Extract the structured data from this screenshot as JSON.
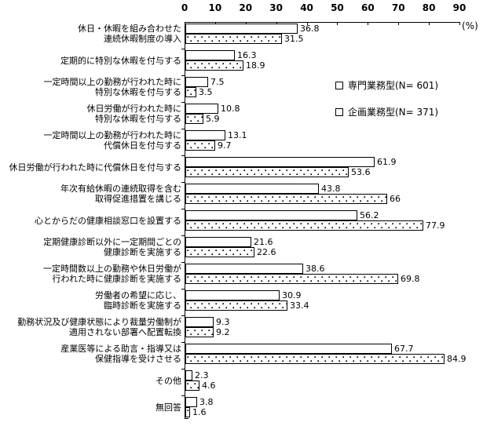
{
  "chart_data": {
    "type": "bar",
    "orientation": "horizontal",
    "unit_label": "(%)",
    "x_ticks": [
      0,
      10,
      20,
      30,
      40,
      50,
      60,
      70,
      80,
      90
    ],
    "xlim": [
      0,
      90
    ],
    "grid": false,
    "legend_position": "right-top",
    "legend": [
      {
        "name": "専門業務型(N= 601)",
        "pattern": "white"
      },
      {
        "name": "企画業務型(N= 371)",
        "pattern": "dotted"
      }
    ],
    "categories": [
      [
        "休日・休暇を組み合わせた",
        "連続休暇制度の導入"
      ],
      [
        "定期的に特別な休暇を付与する"
      ],
      [
        "一定時間以上の勤務が行われた時に",
        "特別な休暇を付与する"
      ],
      [
        "休日労働が行われた時に",
        "特別な休暇を付与する"
      ],
      [
        "一定時間以上の勤務が行われた時に",
        "代償休日を付与する"
      ],
      [
        "休日労働が行われた時に代償休日を付与する"
      ],
      [
        "年次有給休暇の連続取得を含む",
        "取得促進措置を講じる"
      ],
      [
        "心とからだの健康相談窓口を設置する"
      ],
      [
        "定期健康診断以外に一定期間ごとの",
        "健康診断を実施する"
      ],
      [
        "一定時間数以上の勤務や休日労働が",
        "行われた時に健康診断を実施する"
      ],
      [
        "労働者の希望に応じ、",
        "臨時診断を実施する"
      ],
      [
        "勤務状況及び健康状態により裁量労働制が",
        "適用されない部署へ配置転換"
      ],
      [
        "産業医等による助言・指導又は",
        "保健指導を受けさせる"
      ],
      [
        "その他"
      ],
      [
        "無回答"
      ]
    ],
    "series": [
      {
        "name": "専門業務型(N= 601)",
        "pattern": "white",
        "values": [
          36.8,
          16.3,
          7.5,
          10.8,
          13.1,
          61.9,
          43.8,
          56.2,
          21.6,
          38.6,
          30.9,
          9.3,
          67.7,
          2.3,
          3.8
        ]
      },
      {
        "name": "企画業務型(N= 371)",
        "pattern": "dotted",
        "values": [
          31.5,
          18.9,
          3.5,
          5.9,
          9.7,
          53.6,
          66,
          77.9,
          22.6,
          69.8,
          33.4,
          9.2,
          84.9,
          4.6,
          1.6
        ]
      }
    ],
    "colors": {
      "line": "#000000",
      "background": "#ffffff"
    }
  }
}
